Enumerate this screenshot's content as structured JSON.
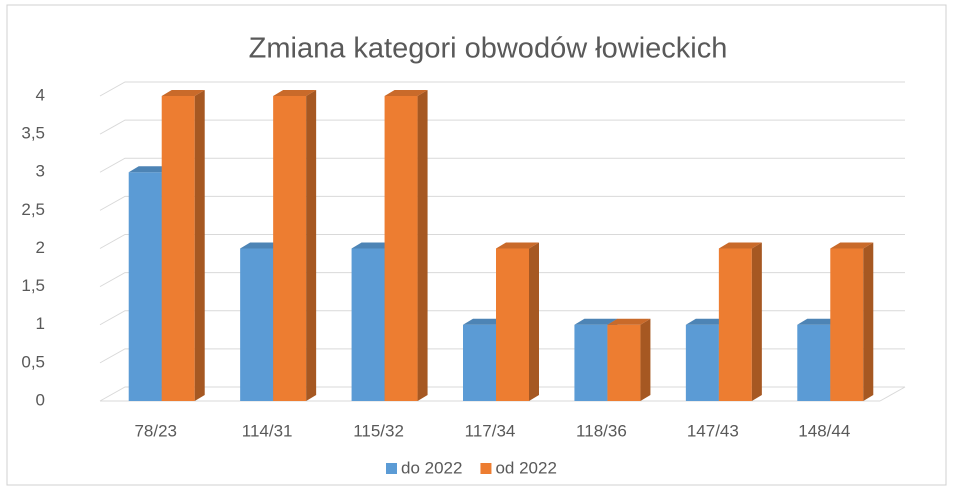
{
  "chart_data": {
    "type": "bar3d",
    "title": "Zmiana kategori obwodów łowieckich",
    "categories": [
      "78/23",
      "114/31",
      "115/32",
      "117/34",
      "118/36",
      "147/43",
      "148/44"
    ],
    "series": [
      {
        "name": "do 2022",
        "color": "#5b9bd5",
        "values": [
          3,
          2,
          2,
          1,
          1,
          1,
          1
        ]
      },
      {
        "name": "od 2022",
        "color": "#ed7d31",
        "values": [
          4,
          4,
          4,
          2,
          1,
          2,
          2
        ]
      }
    ],
    "ylim": [
      0,
      4
    ],
    "yticks": [
      0,
      {
        "value": 0.5,
        "label": "0,5"
      },
      1,
      {
        "value": 1.5,
        "label": "1,5"
      },
      2,
      {
        "value": 2.5,
        "label": "2,5"
      },
      3,
      {
        "value": 3.5,
        "label": "3,5"
      },
      4
    ],
    "grid": true,
    "legend": "bottom"
  }
}
